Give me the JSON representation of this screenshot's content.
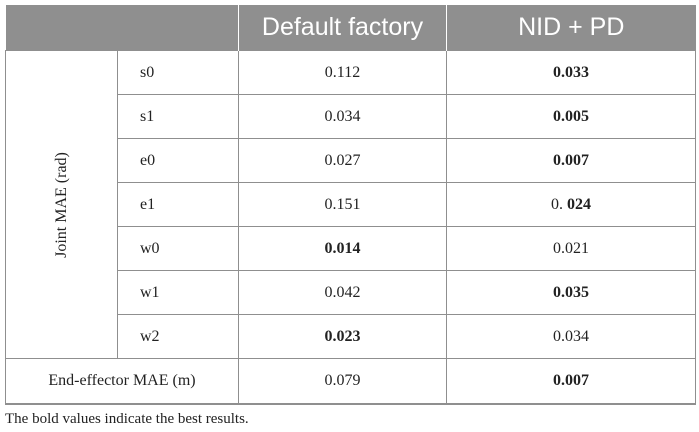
{
  "table": {
    "headers": [
      "",
      "Default factory",
      "NID + PD"
    ],
    "group_label": "Joint MAE (rad)",
    "rows": [
      {
        "name": "s0",
        "default": "0.112",
        "nid": "0.033"
      },
      {
        "name": "s1",
        "default": "0.034",
        "nid": "0.005"
      },
      {
        "name": "e0",
        "default": "0.027",
        "nid": "0.007"
      },
      {
        "name": "e1",
        "default": "0.151",
        "nid_prefix": "0.",
        "nid_bold": "024"
      },
      {
        "name": "w0",
        "default": "0.014",
        "nid": "0.021"
      },
      {
        "name": "w1",
        "default": "0.042",
        "nid": "0.035"
      },
      {
        "name": "w2",
        "default": "0.023",
        "nid": "0.034"
      }
    ],
    "end_effector": {
      "label": "End-effector MAE (m)",
      "default": "0.079",
      "nid": "0.007"
    }
  },
  "footnote": "The bold values indicate the best results."
}
